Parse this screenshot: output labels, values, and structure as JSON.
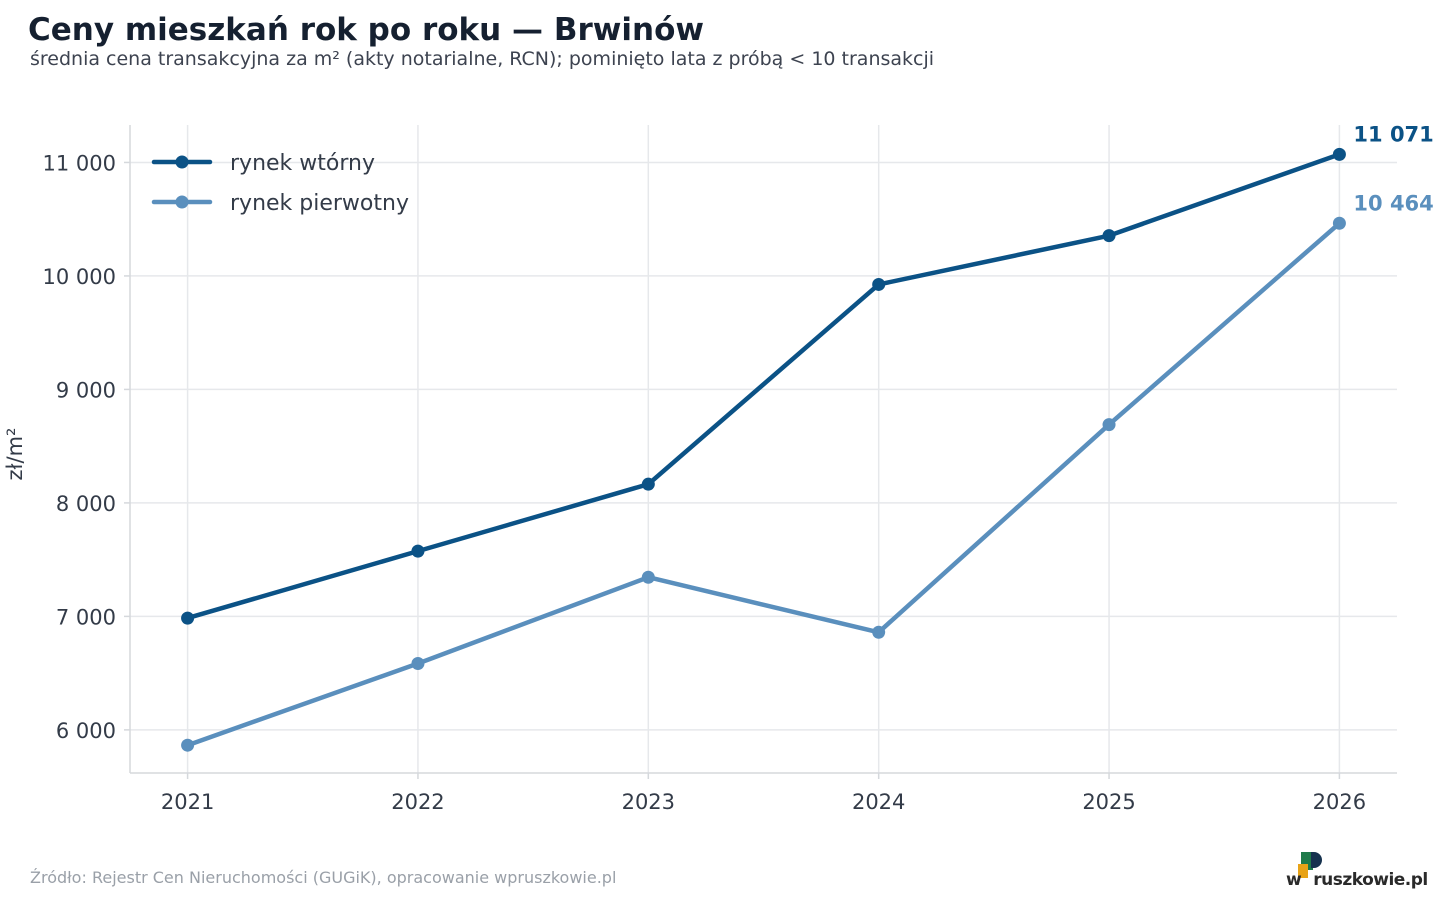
{
  "title": "Ceny mieszkań rok po roku — Brwinów",
  "subtitle": "średnia cena transakcyjna za m² (akty notarialne, RCN); pominięto lata z próbą < 10 transakcji",
  "source": "Źródło: Rejestr Cen Nieruchomości (GUGiK), opracowanie wpruszkowie.pl",
  "logo": {
    "text": "wpruszkowie.pl",
    "mark_colors": [
      "#1e7a4a",
      "#e8a317",
      "#16324f"
    ]
  },
  "colors": {
    "secondary": "#0b5286",
    "primary": "#5a8fbd",
    "grid": "#e6e8eb",
    "axis": "#d5d8dc"
  },
  "chart_data": {
    "type": "line",
    "title": "Ceny mieszkań rok po roku — Brwinów",
    "subtitle": "średnia cena transakcyjna za m² (akty notarialne, RCN); pominięto lata z próbą < 10 transakcji",
    "xlabel": "",
    "ylabel": "zł/m²",
    "x": [
      2021,
      2022,
      2023,
      2024,
      2025,
      2026
    ],
    "x_tick_labels": [
      "2021",
      "2022",
      "2023",
      "2024",
      "2025",
      "2026"
    ],
    "xlim": [
      2020.75,
      2026.25
    ],
    "ylim": [
      5620,
      11330
    ],
    "y_ticks": [
      6000,
      7000,
      8000,
      9000,
      10000,
      11000
    ],
    "y_tick_labels": [
      "6 000",
      "7 000",
      "8 000",
      "9 000",
      "10 000",
      "11 000"
    ],
    "grid": true,
    "legend": "top-left",
    "series": [
      {
        "name": "rynek wtórny",
        "color": "#0b5286",
        "values": [
          6985,
          7575,
          8165,
          9925,
          10355,
          11071
        ],
        "end_label": "11 071"
      },
      {
        "name": "rynek pierwotny",
        "color": "#5a8fbd",
        "values": [
          5865,
          6585,
          7345,
          6860,
          8690,
          10464
        ],
        "end_label": "10 464"
      }
    ]
  }
}
